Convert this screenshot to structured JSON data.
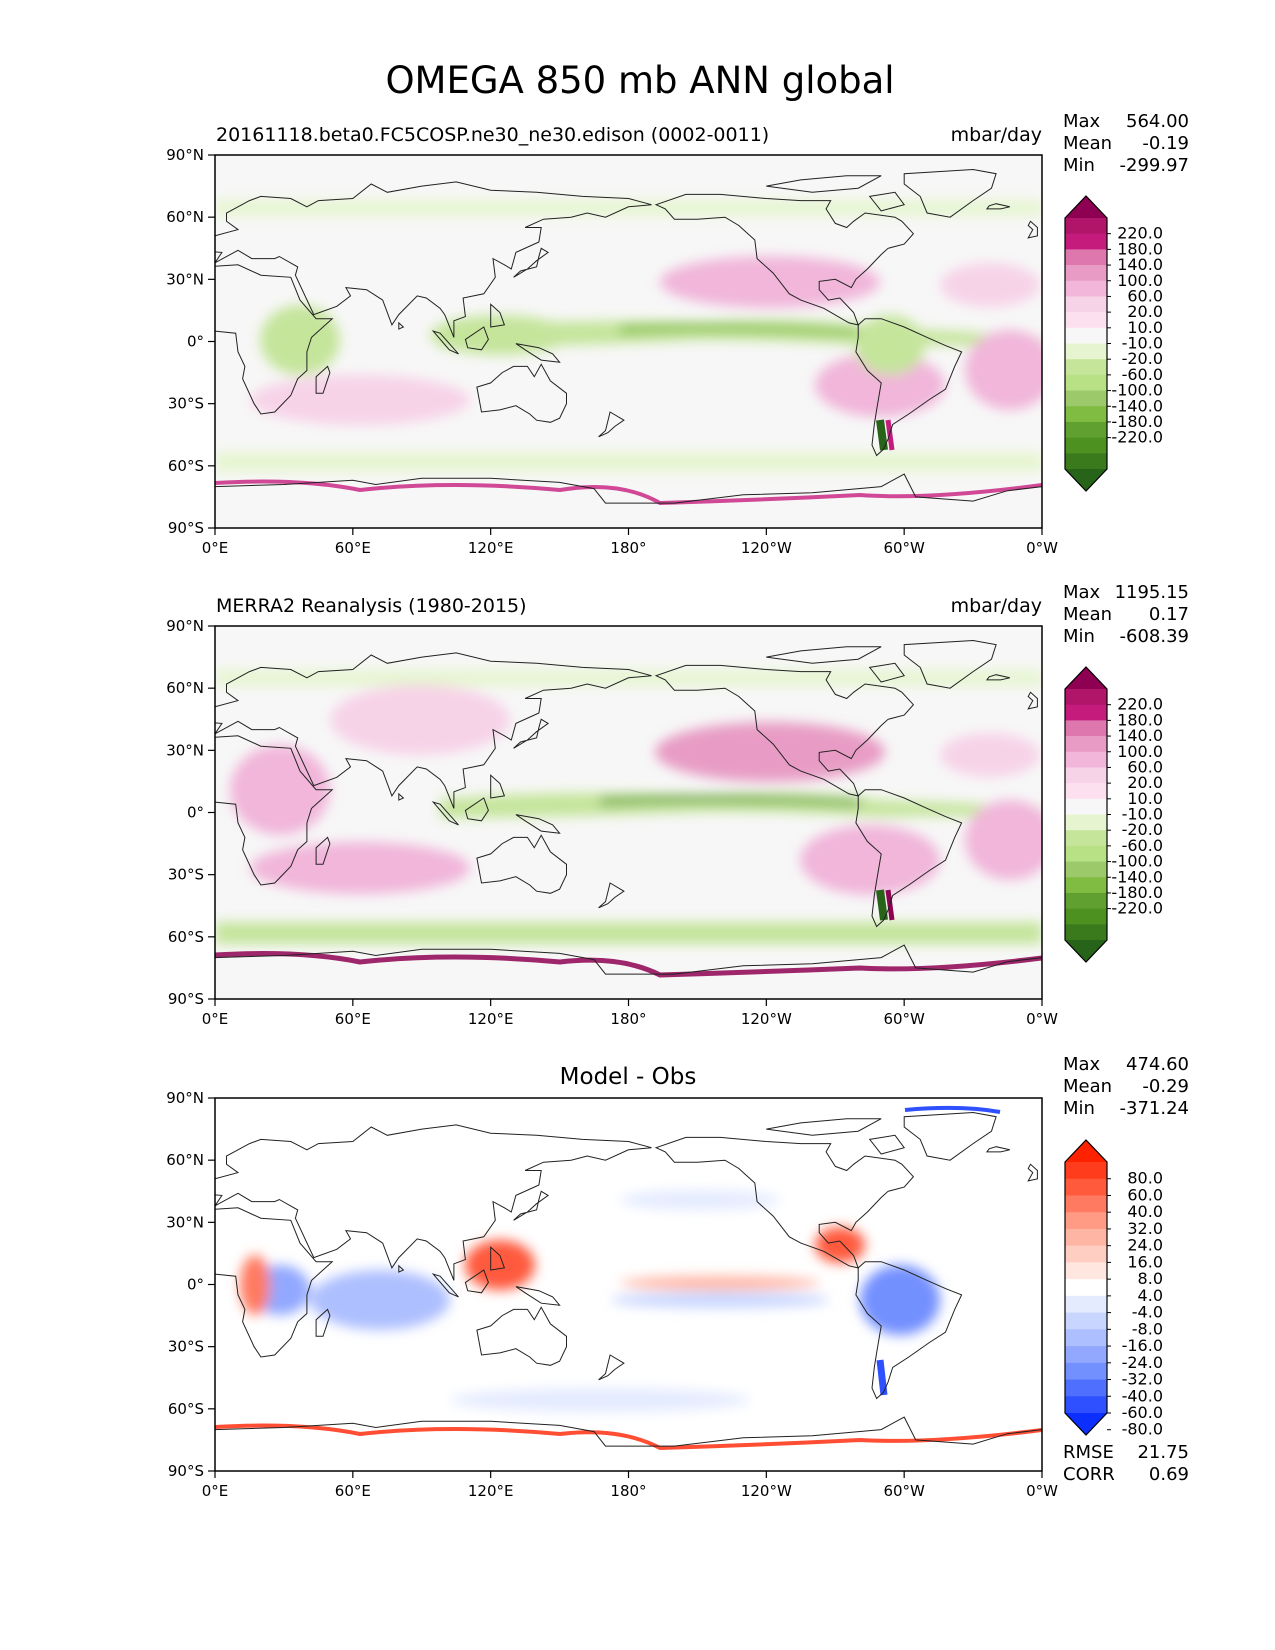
{
  "title": "OMEGA 850 mb ANN global",
  "panels": [
    {
      "id": "test",
      "left_title": "20161118.beta0.FC5COSP.ne30_ne30.edison (0002-0011)",
      "right_title": "mbar/day",
      "center_title": "",
      "stats": [
        {
          "label": "Max",
          "value": "564.00"
        },
        {
          "label": "Mean",
          "value": "-0.19"
        },
        {
          "label": "Min",
          "value": "-299.97"
        }
      ],
      "colorbar": "omega"
    },
    {
      "id": "ref",
      "left_title": "MERRA2 Reanalysis (1980-2015)",
      "right_title": "mbar/day",
      "center_title": "",
      "stats": [
        {
          "label": "Max",
          "value": "1195.15"
        },
        {
          "label": "Mean",
          "value": "0.17"
        },
        {
          "label": "Min",
          "value": "-608.39"
        }
      ],
      "colorbar": "omega"
    },
    {
      "id": "diff",
      "left_title": "",
      "right_title": "",
      "center_title": "Model - Obs",
      "stats": [
        {
          "label": "Max",
          "value": "474.60"
        },
        {
          "label": "Mean",
          "value": "-0.29"
        },
        {
          "label": "Min",
          "value": "-371.24"
        }
      ],
      "extra_stats": [
        {
          "label": "RMSE",
          "value": "21.75"
        },
        {
          "label": "CORR",
          "value": "0.69"
        }
      ],
      "colorbar": "diff"
    }
  ],
  "axes": {
    "lat_ticks": [
      "90°N",
      "60°N",
      "30°N",
      "0°",
      "30°S",
      "60°S",
      "90°S"
    ],
    "lon_ticks": [
      "0°E",
      "60°E",
      "120°E",
      "180°",
      "120°W",
      "60°W",
      "0°W"
    ]
  },
  "colorbars": {
    "omega": {
      "labels": [
        "220.0",
        "180.0",
        "140.0",
        "100.0",
        "60.0",
        "20.0",
        "10.0",
        "-10.0",
        "-20.0",
        "-60.0",
        "-100.0",
        "-140.0",
        "-180.0",
        "-220.0"
      ],
      "colors": [
        "#8e0152",
        "#b0156a",
        "#c51b7d",
        "#de77ae",
        "#e89cc5",
        "#f1b6da",
        "#f7d3e8",
        "#fde0ef",
        "#f7f7f7",
        "#e6f5d0",
        "#c5e59b",
        "#b8e186",
        "#9cc96a",
        "#7fbc41",
        "#5fa030",
        "#4d9221",
        "#3a7a1c",
        "#276419"
      ]
    },
    "diff": {
      "labels": [
        "80.0",
        "60.0",
        "40.0",
        "32.0",
        "24.0",
        "16.0",
        "8.0",
        "4.0",
        "-4.0",
        "-8.0",
        "-16.0",
        "-24.0",
        "-32.0",
        "-40.0",
        "-60.0",
        "-80.0"
      ],
      "colors": [
        "#ff2200",
        "#ff3d1c",
        "#ff5a3c",
        "#ff7a60",
        "#ff9a84",
        "#ffb5a4",
        "#ffcec2",
        "#ffe6df",
        "#ffffff",
        "#e4ebff",
        "#c8d6ff",
        "#aebfff",
        "#92a8ff",
        "#7390ff",
        "#4f70ff",
        "#2e50ff",
        "#0a2fff"
      ]
    }
  },
  "colors": {
    "land_outline": "#222222",
    "map_background_omega": "#f7f7f7",
    "map_background_diff": "#ffffff"
  }
}
